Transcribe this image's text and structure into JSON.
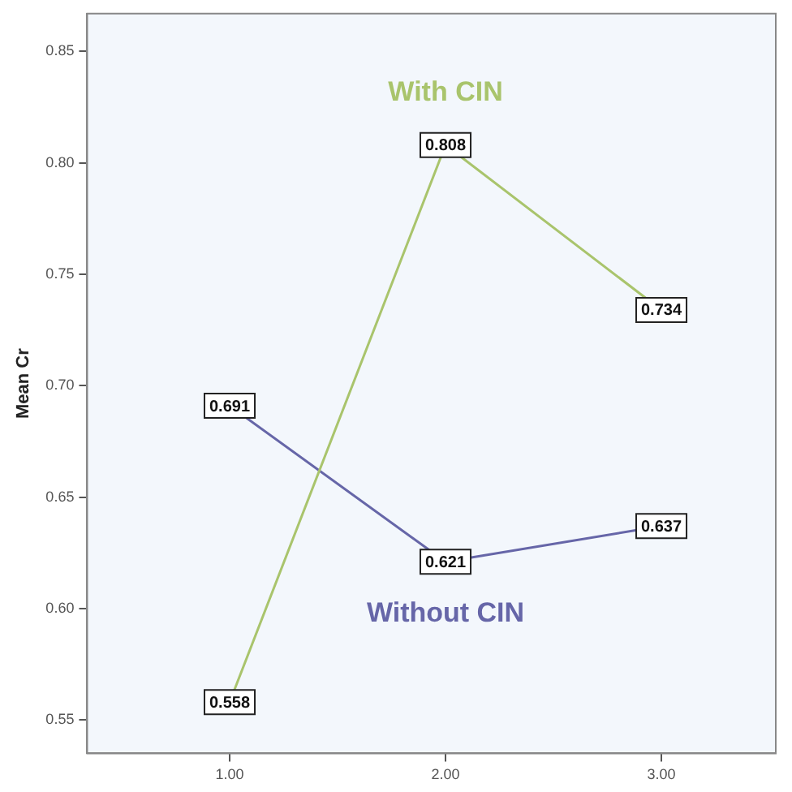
{
  "chart_data": {
    "type": "line",
    "ylabel": "Mean Cr",
    "x": [
      1,
      2,
      3
    ],
    "xlim": [
      0.34,
      3.53
    ],
    "xticks": [
      {
        "value": 1,
        "label": "1.00"
      },
      {
        "value": 2,
        "label": "2.00"
      },
      {
        "value": 3,
        "label": "3.00"
      }
    ],
    "ylim": [
      0.535,
      0.867
    ],
    "yticks": [
      {
        "value": 0.55,
        "label": "0.55"
      },
      {
        "value": 0.6,
        "label": "0.60"
      },
      {
        "value": 0.65,
        "label": "0.65"
      },
      {
        "value": 0.7,
        "label": "0.70"
      },
      {
        "value": 0.75,
        "label": "0.75"
      },
      {
        "value": 0.8,
        "label": "0.80"
      },
      {
        "value": 0.85,
        "label": "0.85"
      }
    ],
    "series": [
      {
        "name": "With CIN",
        "color": "#a9c46c",
        "values": [
          0.558,
          0.808,
          0.734
        ]
      },
      {
        "name": "Without CIN",
        "color": "#6666a8",
        "values": [
          0.691,
          0.621,
          0.637
        ]
      }
    ],
    "data_labels": true,
    "grid": false,
    "legend": false,
    "marker": "square",
    "line_style": "solid"
  }
}
